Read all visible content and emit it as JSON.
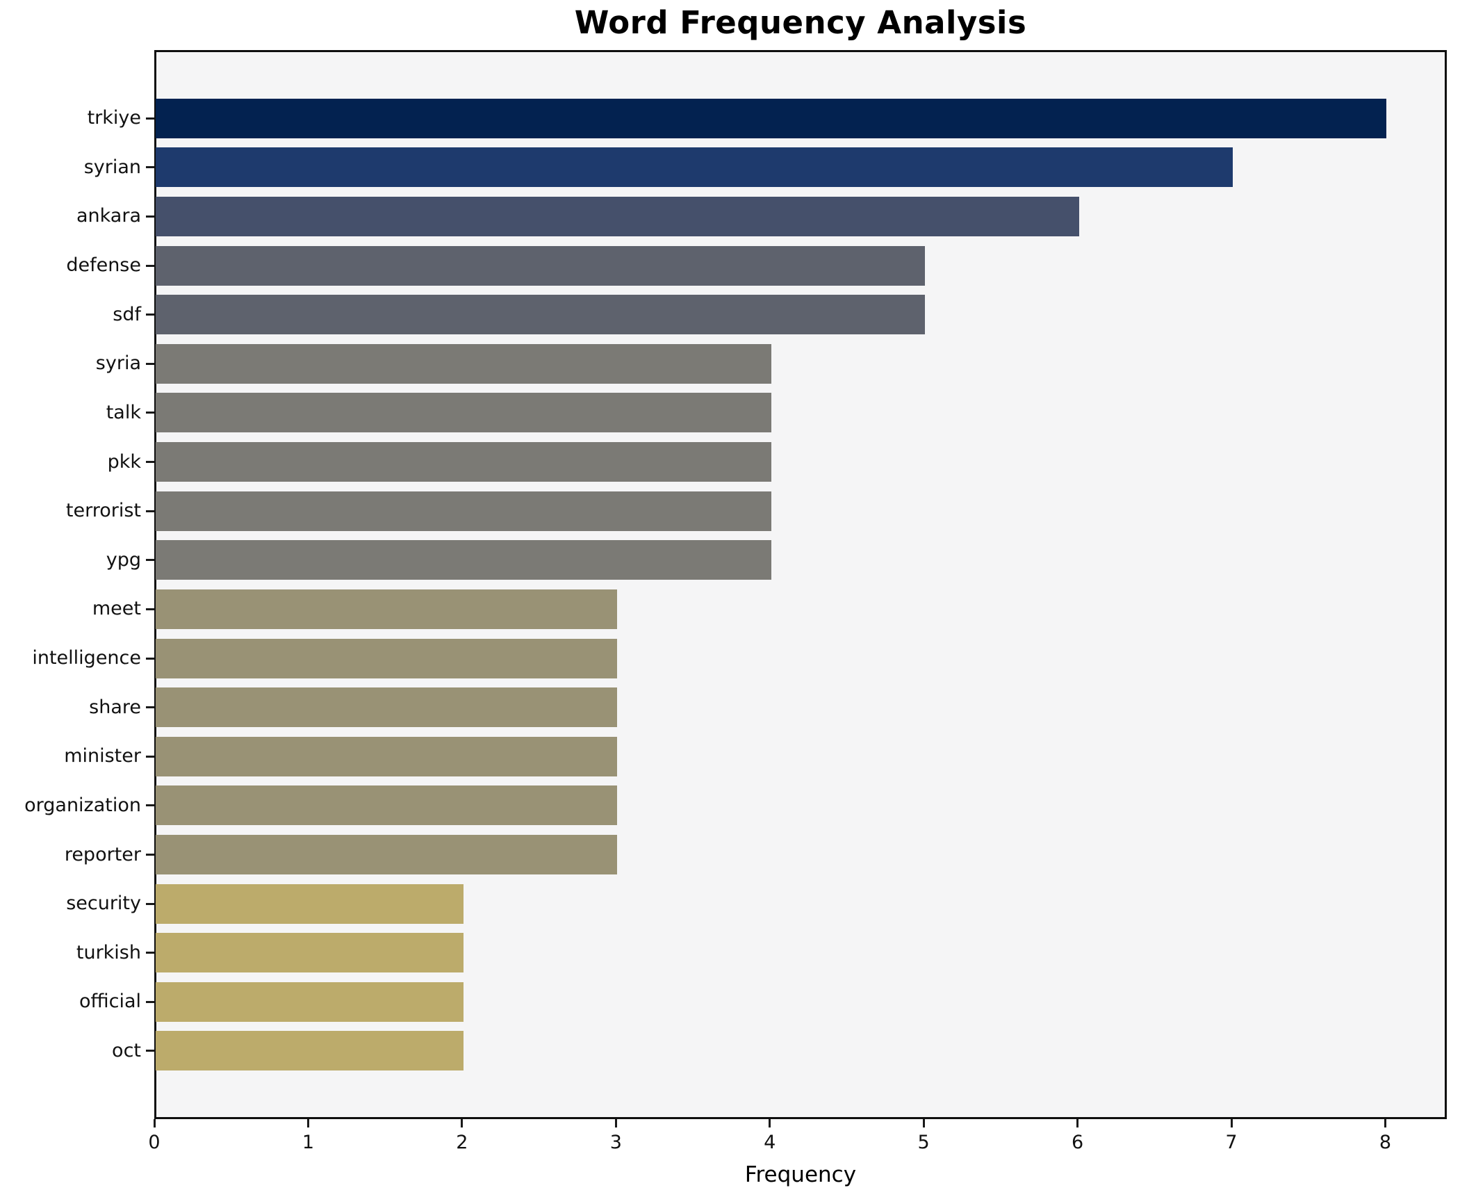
{
  "chart_data": {
    "type": "bar",
    "orientation": "horizontal",
    "title": "Word Frequency Analysis",
    "xlabel": "Frequency",
    "ylabel": "",
    "categories": [
      "trkiye",
      "syrian",
      "ankara",
      "defense",
      "sdf",
      "syria",
      "talk",
      "pkk",
      "terrorist",
      "ypg",
      "meet",
      "intelligence",
      "share",
      "minister",
      "organization",
      "reporter",
      "security",
      "turkish",
      "official",
      "oct"
    ],
    "values": [
      8,
      7,
      6,
      5,
      5,
      4,
      4,
      4,
      4,
      4,
      3,
      3,
      3,
      3,
      3,
      3,
      2,
      2,
      2,
      2
    ],
    "bar_colors": [
      "#032250",
      "#1e3a6d",
      "#45506b",
      "#5e626d",
      "#5e626d",
      "#7b7a75",
      "#7b7a75",
      "#7b7a75",
      "#7b7a75",
      "#7b7a75",
      "#999275",
      "#999275",
      "#999275",
      "#999275",
      "#999275",
      "#999275",
      "#bcab6b",
      "#bcab6b",
      "#bcab6b",
      "#bcab6b"
    ],
    "xlim": [
      0,
      8.4
    ],
    "xticks": [
      0,
      1,
      2,
      3,
      4,
      5,
      6,
      7,
      8
    ],
    "grid": false,
    "legend_position": "none",
    "plot_background": "#f5f5f6",
    "figure_background": "#ffffff",
    "spine_color": "#0f0f0f",
    "tick_color": "#1a1a1a",
    "label_color": "#111111"
  }
}
